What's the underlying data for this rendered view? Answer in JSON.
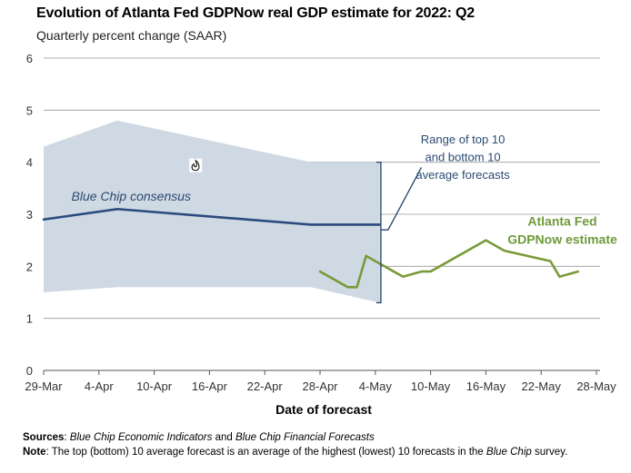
{
  "chart_data": {
    "type": "line",
    "title": "Evolution of Atlanta Fed GDPNow real GDP estimate for 2022: Q2",
    "subtitle": "Quarterly percent change (SAAR)",
    "xlabel": "Date of forecast",
    "ylabel": "",
    "ylim": [
      0,
      6
    ],
    "yticks": [
      "0",
      "1",
      "2",
      "3",
      "4",
      "5",
      "6"
    ],
    "x_domain": [
      0,
      60
    ],
    "xticks": [
      {
        "label": "29-Mar",
        "x": 0
      },
      {
        "label": "4-Apr",
        "x": 6
      },
      {
        "label": "10-Apr",
        "x": 12
      },
      {
        "label": "16-Apr",
        "x": 18
      },
      {
        "label": "22-Apr",
        "x": 24
      },
      {
        "label": "28-Apr",
        "x": 30
      },
      {
        "label": "4-May",
        "x": 36
      },
      {
        "label": "10-May",
        "x": 42
      },
      {
        "label": "16-May",
        "x": 48
      },
      {
        "label": "22-May",
        "x": 54
      },
      {
        "label": "28-May",
        "x": 60
      }
    ],
    "range_band": {
      "name": "Range of top 10 and bottom 10 average forecasts",
      "x": [
        0,
        8,
        29,
        36.5
      ],
      "upper": [
        4.3,
        4.8,
        4.0,
        4.0
      ],
      "lower": [
        1.5,
        1.6,
        1.6,
        1.3
      ]
    },
    "series": [
      {
        "name": "Blue Chip consensus",
        "color": "#2b4a7e",
        "x": [
          0,
          8,
          29,
          36.5
        ],
        "y": [
          2.9,
          3.1,
          2.8,
          2.8
        ]
      },
      {
        "name": "Atlanta Fed GDPNow estimate",
        "color": "#7a9a3a",
        "x": [
          30,
          33,
          34,
          35,
          36,
          38,
          39,
          41,
          42,
          48,
          50,
          55,
          56,
          58
        ],
        "y": [
          1.9,
          1.6,
          1.6,
          2.2,
          2.1,
          1.9,
          1.8,
          1.9,
          1.9,
          2.5,
          2.3,
          2.1,
          1.8,
          1.9
        ]
      }
    ],
    "icon": "fire-icon",
    "annotations": {
      "range_line1": "Range of top 10",
      "range_line2": "and bottom 10",
      "range_line3": "average forecasts",
      "consensus": "Blue Chip consensus",
      "gdpnow_line1": "Atlanta Fed",
      "gdpnow_line2": "GDPNow estimate"
    }
  },
  "footnotes": {
    "sources_label": "Sources",
    "sources_text_1": "Blue Chip Economic Indicators",
    "sources_and": " and ",
    "sources_text_2": "Blue Chip Financial Forecasts",
    "note_label": "Note",
    "note_text_1": ": The top (bottom) 10 average forecast is an average of the highest (lowest) 10 forecasts in the ",
    "note_text_2": "Blue Chip",
    "note_text_3": " survey."
  }
}
